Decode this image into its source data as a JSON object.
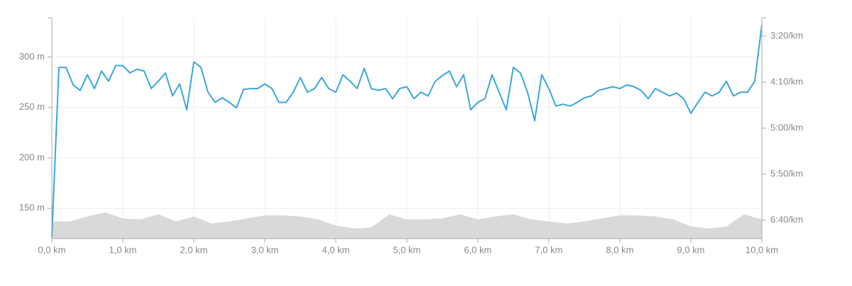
{
  "chart_data": {
    "type": "line",
    "xlim": [
      0,
      10
    ],
    "xticks": [
      {
        "value": 0,
        "label": "0,0 km"
      },
      {
        "value": 1,
        "label": "1,0 km"
      },
      {
        "value": 2,
        "label": "2,0 km"
      },
      {
        "value": 3,
        "label": "3,0 km"
      },
      {
        "value": 4,
        "label": "4,0 km"
      },
      {
        "value": 5,
        "label": "5,0 km"
      },
      {
        "value": 6,
        "label": "6,0 km"
      },
      {
        "value": 7,
        "label": "7,0 km"
      },
      {
        "value": 8,
        "label": "8,0 km"
      },
      {
        "value": 9,
        "label": "9,0 km"
      },
      {
        "value": 10,
        "label": "10,0 km"
      }
    ],
    "ylim": [
      120,
      339
    ],
    "yticks": [
      {
        "value": 150,
        "label": "150 m"
      },
      {
        "value": 200,
        "label": "200 m"
      },
      {
        "value": 250,
        "label": "250 m"
      },
      {
        "value": 300,
        "label": "300 m"
      }
    ],
    "y2lim": [
      420,
      180
    ],
    "y2ticks": [
      {
        "value": 200,
        "label": "3:20/km"
      },
      {
        "value": 250,
        "label": "4:10/km"
      },
      {
        "value": 300,
        "label": "5:00/km"
      },
      {
        "value": 350,
        "label": "5:50/km"
      },
      {
        "value": 400,
        "label": "6:40/km"
      }
    ],
    "grid": true,
    "series": [
      {
        "kind": "area",
        "color": "#d9d9d9",
        "x": [
          0,
          0.25,
          0.5,
          0.75,
          1,
          1.25,
          1.5,
          1.75,
          2,
          2.25,
          2.5,
          2.75,
          3,
          3.25,
          3.5,
          3.75,
          4,
          4.25,
          4.5,
          4.75,
          5,
          5.25,
          5.5,
          5.75,
          6,
          6.25,
          6.5,
          6.75,
          7,
          7.25,
          7.5,
          7.75,
          8,
          8.25,
          8.5,
          8.75,
          9,
          9.25,
          9.5,
          9.75,
          10
        ],
        "values": [
          137,
          137,
          142,
          146,
          140,
          139,
          144,
          137,
          142,
          135,
          137,
          140,
          143,
          143,
          142,
          139,
          133,
          130,
          131,
          144,
          139,
          139,
          140,
          144,
          139,
          142,
          144,
          139,
          137,
          135,
          137,
          140,
          143,
          143,
          142,
          139,
          132,
          130,
          132,
          144,
          139
        ]
      },
      {
        "kind": "line",
        "color": "#3aa6dc",
        "axis": "y2",
        "x": [
          0,
          0.1,
          0.2,
          0.3,
          0.4,
          0.5,
          0.6,
          0.7,
          0.8,
          0.9,
          1,
          1.1,
          1.2,
          1.3,
          1.4,
          1.5,
          1.6,
          1.7,
          1.8,
          1.9,
          2,
          2.1,
          2.2,
          2.3,
          2.4,
          2.5,
          2.6,
          2.7,
          2.8,
          2.9,
          3,
          3.1,
          3.2,
          3.3,
          3.4,
          3.5,
          3.6,
          3.7,
          3.8,
          3.9,
          4,
          4.1,
          4.2,
          4.3,
          4.4,
          4.5,
          4.6,
          4.7,
          4.8,
          4.9,
          5,
          5.1,
          5.2,
          5.3,
          5.4,
          5.5,
          5.6,
          5.7,
          5.8,
          5.9,
          6,
          6.1,
          6.2,
          6.3,
          6.4,
          6.5,
          6.6,
          6.7,
          6.8,
          6.9,
          7,
          7.1,
          7.2,
          7.3,
          7.4,
          7.5,
          7.6,
          7.7,
          7.8,
          7.9,
          8,
          8.1,
          8.2,
          8.3,
          8.4,
          8.5,
          8.6,
          8.7,
          8.8,
          8.9,
          9,
          9.1,
          9.2,
          9.3,
          9.4,
          9.5,
          9.6,
          9.7,
          9.8,
          9.9,
          10
        ],
        "values": [
          418,
          234,
          234,
          253,
          259,
          242,
          257,
          238,
          249,
          232,
          232,
          240,
          236,
          238,
          257,
          249,
          240,
          265,
          252,
          280,
          228,
          234,
          261,
          272,
          267,
          272,
          278,
          258,
          257,
          257,
          252,
          257,
          272,
          272,
          261,
          245,
          261,
          257,
          245,
          257,
          261,
          242,
          249,
          257,
          235,
          257,
          259,
          257,
          268,
          257,
          255,
          268,
          261,
          265,
          249,
          243,
          238,
          255,
          242,
          280,
          272,
          268,
          242,
          261,
          280,
          234,
          240,
          261,
          292,
          242,
          257,
          276,
          274,
          276,
          272,
          267,
          265,
          259,
          257,
          255,
          257,
          253,
          255,
          259,
          268,
          257,
          261,
          265,
          262,
          268,
          284,
          272,
          261,
          265,
          261,
          249,
          265,
          261,
          261,
          249,
          188
        ]
      }
    ]
  }
}
